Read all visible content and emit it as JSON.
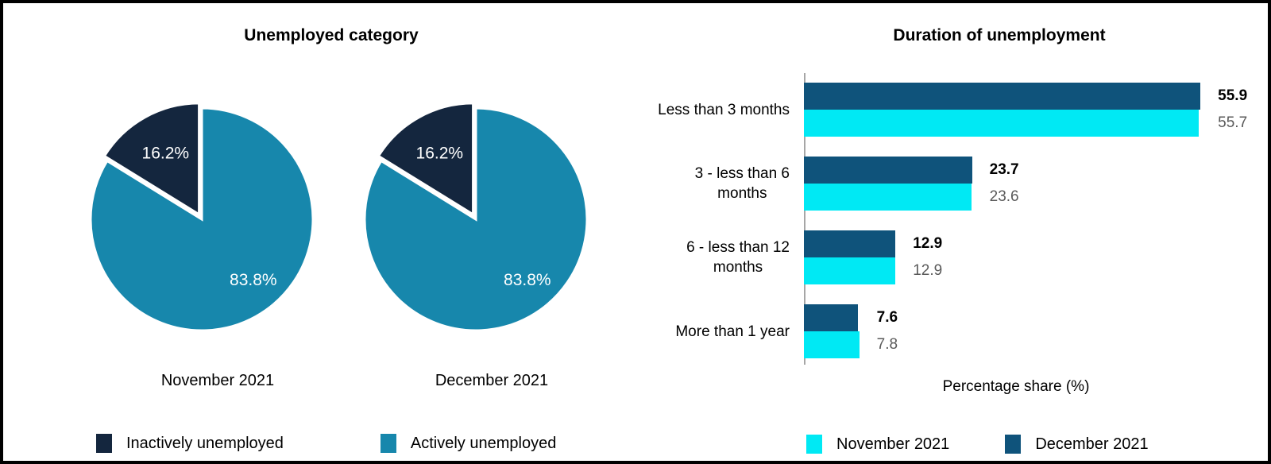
{
  "colors": {
    "navy": "#14263E",
    "teal": "#1787AC",
    "dark_blue": "#0F537B",
    "cyan": "#00E9F4",
    "axis_gray": "#A6A6A6",
    "value_gray": "#595959",
    "label_black": "#000000",
    "pie_label_white": "#FFFFFF"
  },
  "chart_data": [
    {
      "type": "pie",
      "title": "Unemployed category",
      "legend_position": "bottom",
      "legend": [
        {
          "label": "Inactively unemployed",
          "color_key": "navy"
        },
        {
          "label": "Actively unemployed",
          "color_key": "teal"
        }
      ],
      "pies": [
        {
          "caption": "November 2021",
          "slices": [
            {
              "label": "Inactively unemployed",
              "value": 16.2,
              "display": "16.2%",
              "color_key": "navy",
              "exploded": true
            },
            {
              "label": "Actively unemployed",
              "value": 83.8,
              "display": "83.8%",
              "color_key": "teal",
              "exploded": false
            }
          ]
        },
        {
          "caption": "December 2021",
          "slices": [
            {
              "label": "Inactively unemployed",
              "value": 16.2,
              "display": "16.2%",
              "color_key": "navy",
              "exploded": true
            },
            {
              "label": "Actively unemployed",
              "value": 83.8,
              "display": "83.8%",
              "color_key": "teal",
              "exploded": false
            }
          ]
        }
      ]
    },
    {
      "type": "bar",
      "orientation": "horizontal",
      "title": "Duration of unemployment",
      "xlabel": "Percentage share (%)",
      "xlim": [
        0,
        65
      ],
      "grid": false,
      "legend_position": "bottom",
      "categories": [
        "Less than 3 months",
        "3 - less than 6\nmonths",
        "6 - less than 12\nmonths",
        "More than 1 year"
      ],
      "series": [
        {
          "name": "December 2021",
          "color_key": "dark_blue",
          "values": [
            55.9,
            23.7,
            12.9,
            7.6
          ]
        },
        {
          "name": "November 2021",
          "color_key": "cyan",
          "values": [
            55.7,
            23.6,
            12.9,
            7.8
          ]
        }
      ],
      "legend": [
        {
          "label": "November 2021",
          "color_key": "cyan"
        },
        {
          "label": "December 2021",
          "color_key": "dark_blue"
        }
      ]
    }
  ]
}
